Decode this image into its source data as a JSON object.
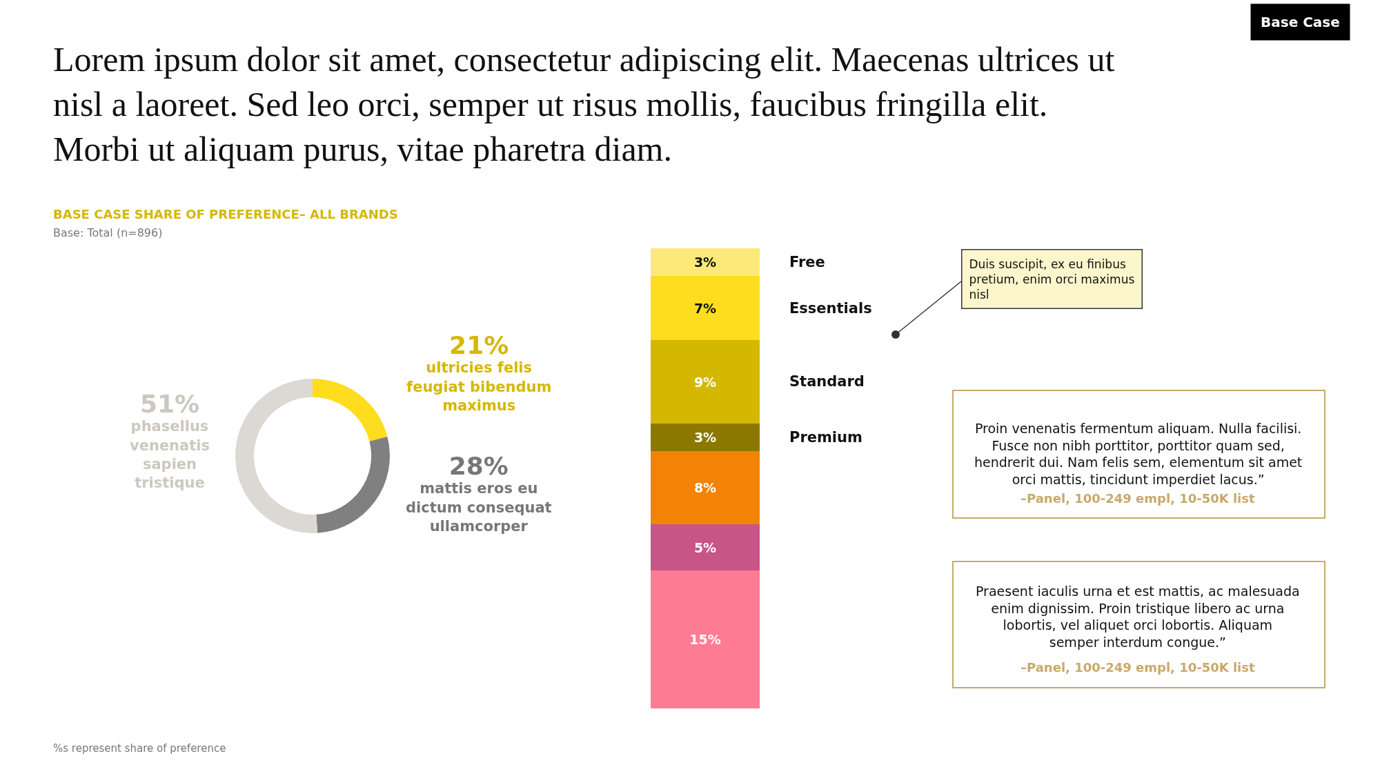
{
  "chart_data": [
    {
      "type": "donut",
      "title": "BASE CASE SHARE OF PREFERENCE– ALL BRANDS",
      "subtitle": "Base: Total (n=896)",
      "categories": [
        "ultricies felis feugiat bibendum maximus",
        "mattis eros eu dictum consequat ullamcorper",
        "phasellus venenatis sapien tristique"
      ],
      "values": [
        21,
        28,
        51
      ],
      "value_labels": [
        "21%",
        "28%",
        "51%"
      ],
      "colors": [
        "#fedd1f",
        "#808080",
        "#dcd9d4"
      ],
      "annotations": [
        "Lorem ipsum dolor sit amet, consectetur adipiscing elit. Maecenas ultrices ut nisl a laoreet. Sed leo orci, semper ut risus mollis, faucibus fringilla elit. Morbi ut aliquam purus, vitae pharetra diam.",
        "Base Case",
        "%s represent share of preference"
      ]
    },
    {
      "type": "bar",
      "stacked": true,
      "categories": [
        null
      ],
      "series": [
        {
          "color": "#fe7b94",
          "values": [
            15
          ],
          "value_labels": [
            "15%"
          ]
        },
        {
          "color": "#c85587",
          "values": [
            5
          ],
          "value_labels": [
            "5%"
          ]
        },
        {
          "color": "#f28305",
          "values": [
            8
          ],
          "value_labels": [
            "8%"
          ]
        },
        {
          "name": "Premium",
          "color": "#8c7800",
          "values": [
            3
          ],
          "value_labels": [
            "3%"
          ]
        },
        {
          "name": "Standard",
          "color": "#d4b800",
          "values": [
            9
          ],
          "value_labels": [
            "9%"
          ]
        },
        {
          "name": "Essentials",
          "color": "#fedd1f",
          "values": [
            7
          ],
          "value_labels": [
            "7%"
          ]
        },
        {
          "name": "Free",
          "color": "#fde97a",
          "values": [
            3
          ],
          "value_labels": [
            "3%"
          ]
        }
      ],
      "annotations": [
        "Duis suscipit, ex eu finibus pretium, enim orci maximus nisl",
        "Proin venenatis fermentum aliquam. Nulla facilisi. Fusce non nibh porttitor, porttitor quam sed, hendrerit dui. Nam felis sem, elementum sit amet orci mattis, tincidunt imperdiet lacus.”",
        "–Panel, 100-249 empl, 10-50K list",
        "Praesent iaculis urna et est mattis, ac malesuada enim dignissim. Proin tristique libero ac urna lobortis, vel aliquet orci lobortis. Aliquam semper interdum congue.”",
        "–Panel, 100-249 empl, 10-50K list"
      ]
    }
  ]
}
